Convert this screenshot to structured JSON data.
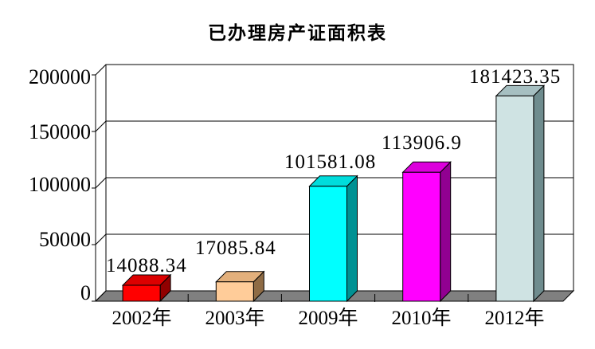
{
  "chart_data": {
    "type": "bar",
    "style": "3d-column",
    "title": "已办理房产证面积表",
    "categories": [
      "2002年",
      "2003年",
      "2009年",
      "2010年",
      "2012年"
    ],
    "values": [
      14088.34,
      17085.84,
      101581.08,
      113906.9,
      181423.35
    ],
    "value_labels": [
      "14088.34",
      "17085.84",
      "101581.08",
      "113906.9",
      "181423.35"
    ],
    "y_tick_labels": [
      "200000",
      "150000",
      "100000",
      "50000",
      "0"
    ],
    "y_ticks": [
      200000,
      150000,
      100000,
      50000,
      0
    ],
    "ylim": [
      0,
      200000
    ],
    "xlabel": "",
    "ylabel": "",
    "grid": true,
    "legend": false,
    "bar_colors": [
      {
        "front": "#FF0000",
        "top": "#DC0000",
        "side": "#910000"
      },
      {
        "front": "#FFCC99",
        "top": "#E3B07C",
        "side": "#8E6B45"
      },
      {
        "front": "#00FFFF",
        "top": "#00DCDC",
        "side": "#009193"
      },
      {
        "front": "#FF00FF",
        "top": "#DC00DC",
        "side": "#910091"
      },
      {
        "front": "#CFE3E3",
        "top": "#A6BFC1",
        "side": "#6F8C8E"
      }
    ],
    "floor_color": "#808080",
    "wall_color": "#FFFFFF",
    "axis_color": "#000000",
    "background": "#FFFFFF"
  }
}
